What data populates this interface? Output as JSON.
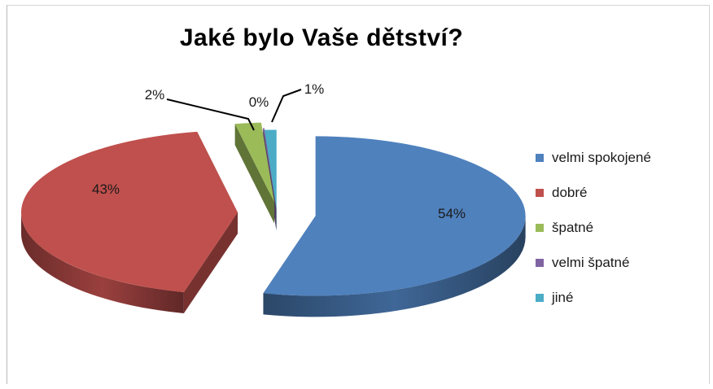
{
  "chart_data": {
    "type": "pie",
    "style": "3d-exploded",
    "title": "Jaké bylo Vaše dětství?",
    "categories": [
      "velmi spokojené",
      "dobré",
      "špatné",
      "velmi špatné",
      "jiné"
    ],
    "values": [
      54,
      43,
      2,
      0,
      1
    ],
    "labels": [
      "54%",
      "43%",
      "2%",
      "0%",
      "1%"
    ],
    "colors": [
      "#4F81BD",
      "#C0504D",
      "#9BBB59",
      "#8064A2",
      "#4BACC6"
    ],
    "legend_position": "right"
  }
}
